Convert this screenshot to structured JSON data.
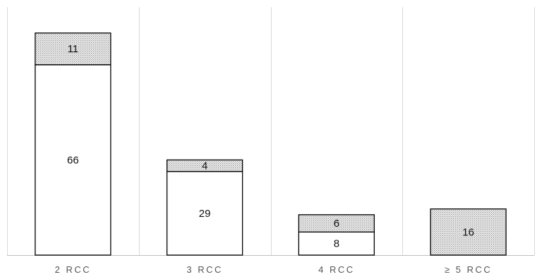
{
  "chart_data": {
    "type": "bar",
    "stacked": true,
    "categories": [
      "2 RCC",
      "3 RCC",
      "4 RCC",
      "≥ 5 RCC"
    ],
    "series": [
      {
        "values": [
          66,
          29,
          8,
          0
        ],
        "fill": "white"
      },
      {
        "values": [
          11,
          4,
          6,
          16
        ],
        "fill": "dotted-grey"
      }
    ],
    "title": "",
    "xlabel": "",
    "ylabel": "",
    "ylim": [
      0,
      86
    ],
    "grid": "vertical category separators",
    "legend": "none"
  },
  "colors": {
    "bar_outline": "#000000",
    "bar_white_fill": "#ffffff",
    "bar_hatch_fill": "#c8c8c8",
    "separator": "#d9d9d9",
    "axis": "#bfbfbf"
  }
}
